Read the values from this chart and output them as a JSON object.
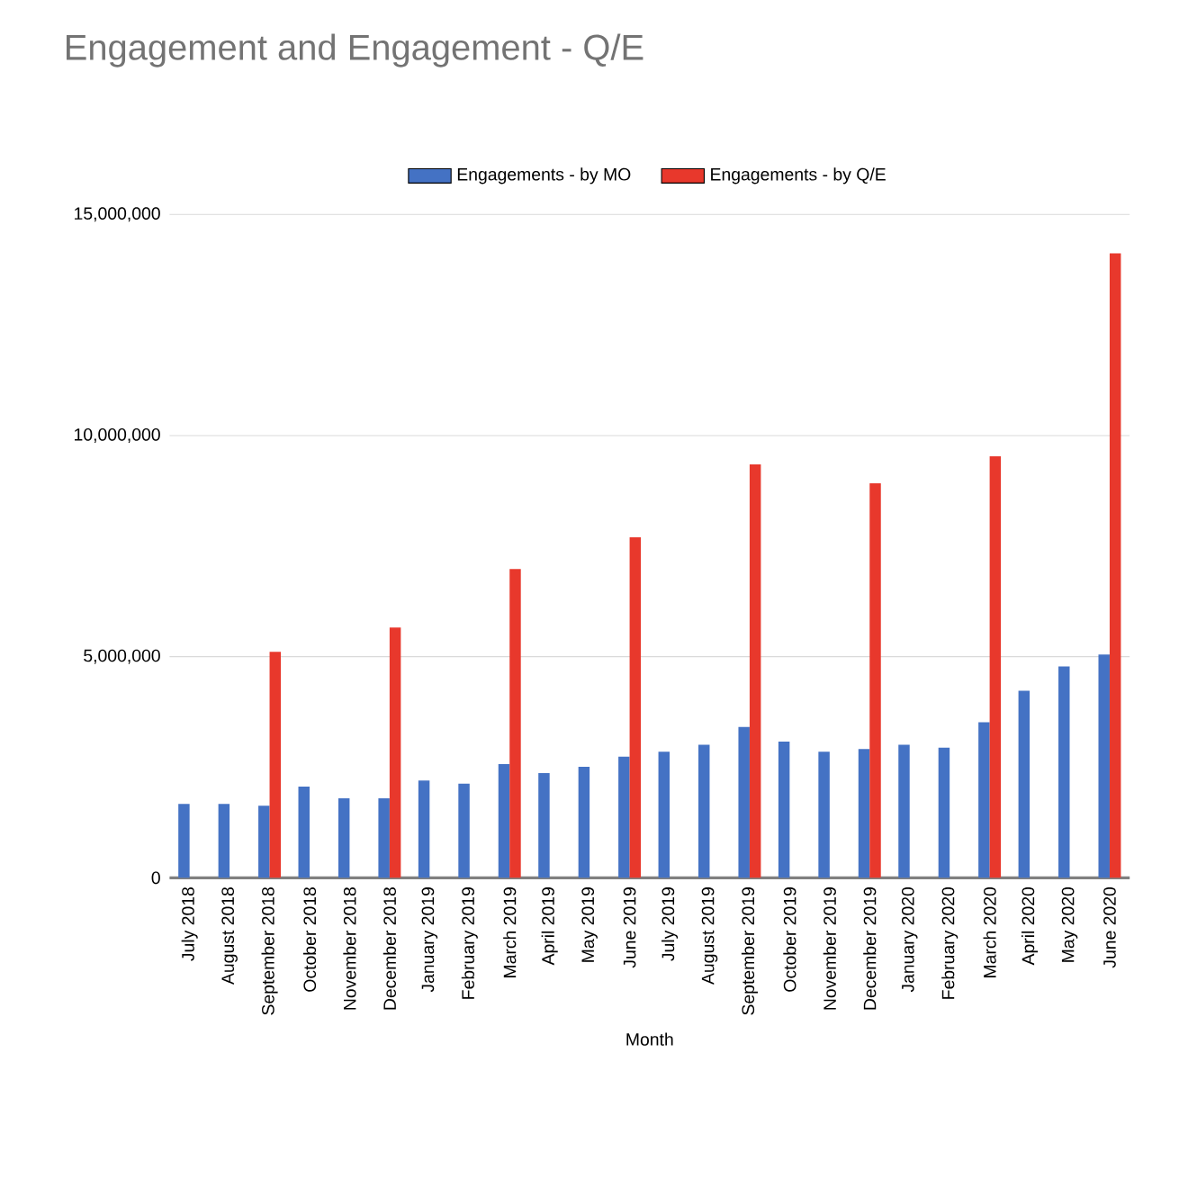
{
  "chart_data": {
    "type": "bar",
    "title": "Engagement and Engagement - Q/E",
    "xlabel": "Month",
    "categories": [
      "July 2018",
      "August 2018",
      "September 2018",
      "October 2018",
      "November 2018",
      "December 2018",
      "January 2019",
      "February 2019",
      "March 2019",
      "April 2019",
      "May 2019",
      "June 2019",
      "July 2019",
      "August 2019",
      "September 2019",
      "October 2019",
      "November 2019",
      "December 2019",
      "January 2020",
      "February 2020",
      "March 2020",
      "April 2020",
      "May 2020",
      "June 2020"
    ],
    "series": [
      {
        "name": "Engagements - by MO",
        "color": "#4472c4",
        "values": [
          1670000,
          1670000,
          1630000,
          2060000,
          1800000,
          1800000,
          2200000,
          2130000,
          2570000,
          2370000,
          2510000,
          2740000,
          2850000,
          3010000,
          3410000,
          3080000,
          2850000,
          2910000,
          3010000,
          2940000,
          3520000,
          4230000,
          4780000,
          5050000
        ]
      },
      {
        "name": "Engagements -  by Q/E",
        "color": "#e8382c",
        "values": [
          null,
          null,
          5110000,
          null,
          null,
          5660000,
          null,
          null,
          6980000,
          null,
          null,
          7700000,
          null,
          null,
          9350000,
          null,
          null,
          8920000,
          null,
          null,
          9530000,
          null,
          null,
          14120000
        ]
      }
    ],
    "ylim": [
      0,
      15000000
    ],
    "yticks": [
      {
        "value": 0,
        "label": "0"
      },
      {
        "value": 5000000,
        "label": "5,000,000"
      },
      {
        "value": 10000000,
        "label": "10,000,000"
      },
      {
        "value": 15000000,
        "label": "15,000,000"
      }
    ],
    "grid": "y",
    "legend": "top"
  }
}
